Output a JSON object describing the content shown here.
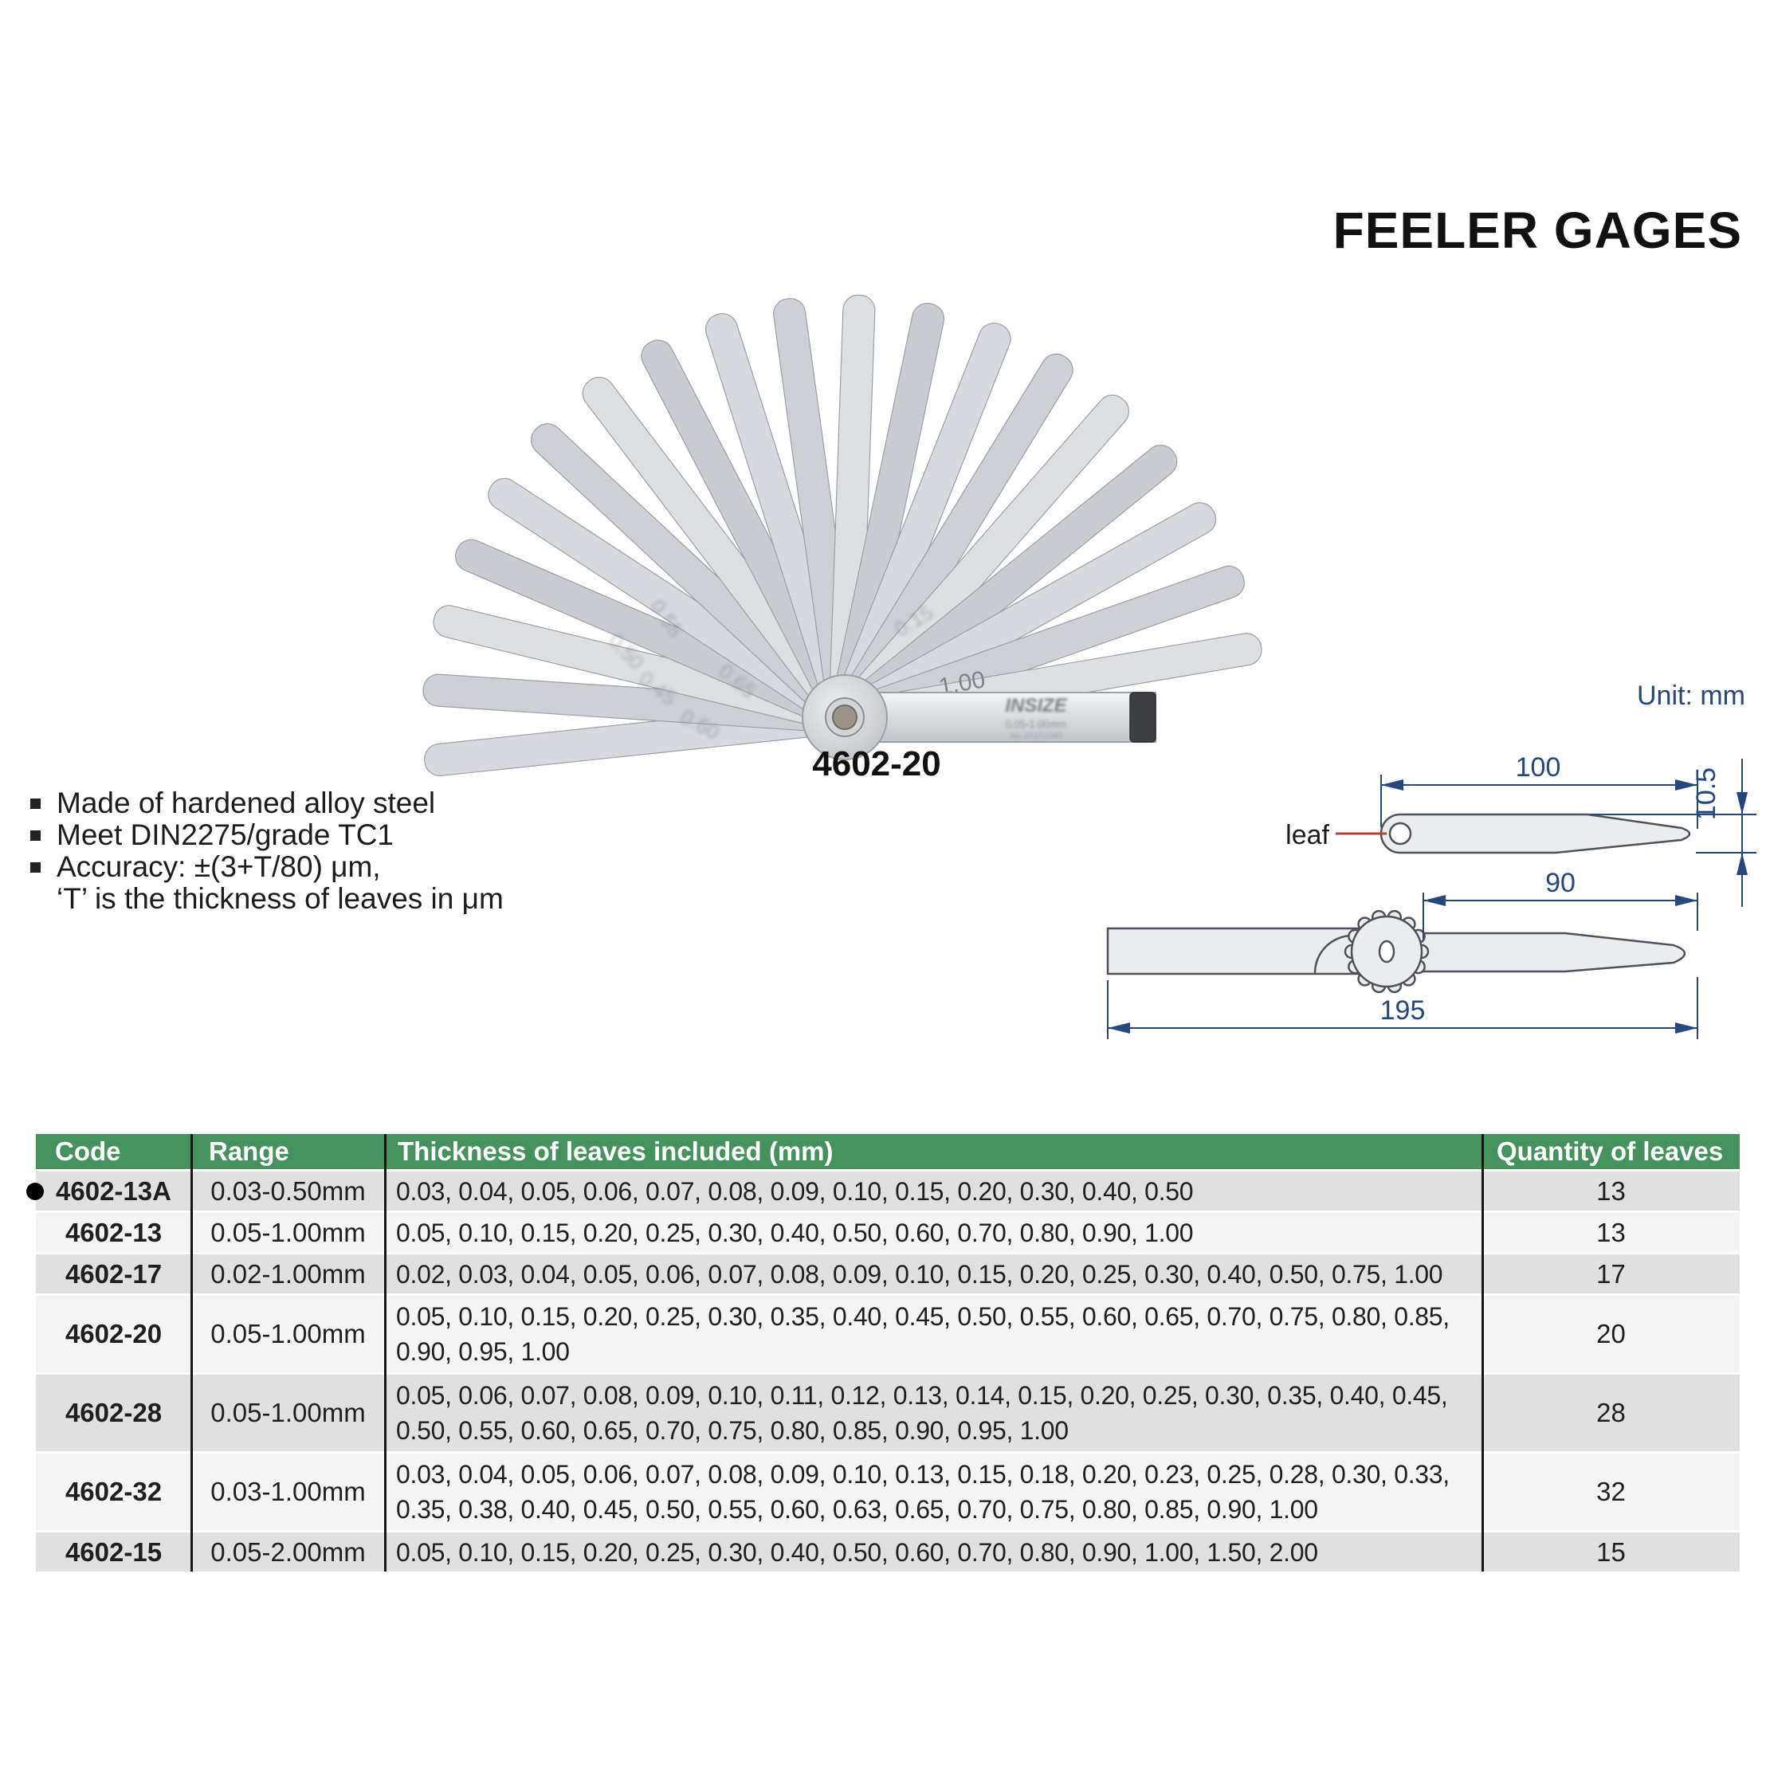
{
  "page": {
    "title": "FEELER GAGES",
    "unit_label": "Unit: mm"
  },
  "photo": {
    "caption": "4602-20",
    "brand_marking": "INSIZE",
    "range_marking": "0.05-1.00mm",
    "serial_marking": "No.20151090",
    "stamps": [
      "1.00",
      "0.45",
      "0.50",
      "0.55",
      "0.60",
      "0.65",
      "0.15"
    ]
  },
  "features": [
    {
      "bullet": true,
      "text": "Made of hardened alloy steel"
    },
    {
      "bullet": true,
      "text": "Meet DIN2275/grade TC1"
    },
    {
      "bullet": true,
      "text": "Accuracy: ±(3+T/80) μm,"
    },
    {
      "bullet": false,
      "text": "‘T’ is the thickness of leaves in μm"
    }
  ],
  "diagram": {
    "leaf_label": "leaf",
    "dim_leaf_length": "100",
    "dim_leaf_height": "10.5",
    "dim_exposed_length": "90",
    "dim_total_length": "195"
  },
  "table": {
    "headers": [
      "Code",
      "Range",
      "Thickness of leaves included (mm)",
      "Quantity of leaves"
    ],
    "rows": [
      {
        "code": "4602-13A",
        "marked": true,
        "range": "0.03-0.50mm",
        "thickness_lines": [
          "0.03, 0.04, 0.05, 0.06, 0.07, 0.08, 0.09, 0.10, 0.15, 0.20, 0.30, 0.40, 0.50"
        ],
        "qty": "13"
      },
      {
        "code": "4602-13",
        "marked": false,
        "range": "0.05-1.00mm",
        "thickness_lines": [
          "0.05, 0.10, 0.15, 0.20, 0.25, 0.30, 0.40, 0.50, 0.60, 0.70, 0.80, 0.90, 1.00"
        ],
        "qty": "13"
      },
      {
        "code": "4602-17",
        "marked": false,
        "range": "0.02-1.00mm",
        "thickness_lines": [
          "0.02, 0.03, 0.04, 0.05, 0.06, 0.07, 0.08, 0.09, 0.10, 0.15, 0.20, 0.25, 0.30, 0.40, 0.50, 0.75, 1.00"
        ],
        "qty": "17"
      },
      {
        "code": "4602-20",
        "marked": false,
        "range": "0.05-1.00mm",
        "thickness_lines": [
          "0.05, 0.10, 0.15, 0.20, 0.25, 0.30, 0.35, 0.40, 0.45, 0.50, 0.55, 0.60, 0.65, 0.70, 0.75, 0.80, 0.85,",
          "0.90, 0.95, 1.00"
        ],
        "qty": "20"
      },
      {
        "code": "4602-28",
        "marked": false,
        "range": "0.05-1.00mm",
        "thickness_lines": [
          "0.05, 0.06, 0.07, 0.08, 0.09, 0.10, 0.11, 0.12, 0.13, 0.14, 0.15, 0.20, 0.25, 0.30, 0.35, 0.40, 0.45,",
          "0.50, 0.55, 0.60, 0.65, 0.70, 0.75, 0.80, 0.85, 0.90, 0.95, 1.00"
        ],
        "qty": "28"
      },
      {
        "code": "4602-32",
        "marked": false,
        "range": "0.03-1.00mm",
        "thickness_lines": [
          "0.03, 0.04, 0.05, 0.06, 0.07, 0.08, 0.09, 0.10, 0.13, 0.15, 0.18, 0.20, 0.23, 0.25, 0.28, 0.30, 0.33,",
          "0.35, 0.38, 0.40, 0.45, 0.50, 0.55, 0.60, 0.63, 0.65, 0.70, 0.75, 0.80, 0.85, 0.90, 1.00"
        ],
        "qty": "32"
      },
      {
        "code": "4602-15",
        "marked": false,
        "range": "0.05-2.00mm",
        "thickness_lines": [
          "0.05, 0.10, 0.15, 0.20, 0.25, 0.30, 0.40, 0.50, 0.60, 0.70, 0.80, 0.90, 1.00, 1.50, 2.00"
        ],
        "qty": "15"
      }
    ]
  },
  "colors": {
    "header_green": "#46925c",
    "row_dark": "#e0e0e1",
    "row_light": "#f4f4f5",
    "dim_navy": "#25477b",
    "leader_red": "#b2433a",
    "outline_gray": "#4d525a",
    "drawing_fill": "#ebecee"
  }
}
